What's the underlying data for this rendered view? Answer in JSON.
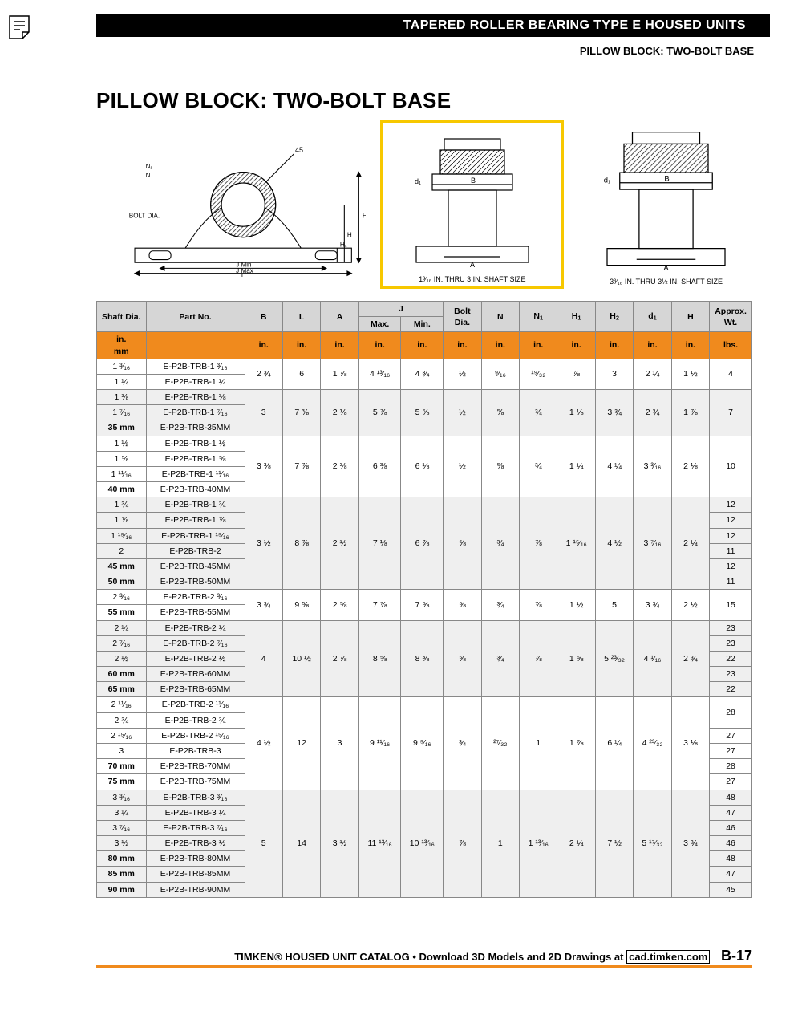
{
  "header": {
    "title_line": "TAPERED ROLLER BEARING TYPE E HOUSED UNITS",
    "subtitle_line": "PILLOW BLOCK: TWO-BOLT BASE"
  },
  "section_title": "PILLOW BLOCK: TWO-BOLT BASE",
  "diagram_captions": {
    "d2": "1³⁄₁₆ IN. THRU 3 IN. SHAFT SIZE",
    "d3": "3³⁄₁₆ IN. THRU 3½ IN. SHAFT SIZE"
  },
  "columns": {
    "shaft": "Shaft Dia.",
    "part": "Part No.",
    "B": "B",
    "L": "L",
    "A": "A",
    "J": "J",
    "Jmax": "Max.",
    "Jmin": "Min.",
    "bolt": "Bolt Dia.",
    "N": "N",
    "N1": "N",
    "N1_sub": "1",
    "H1": "H",
    "H1_sub": "1",
    "H2": "H",
    "H2_sub": "2",
    "d1": "d",
    "d1_sub": "1",
    "H": "H",
    "wt": "Approx. Wt."
  },
  "unit_row": {
    "shaft_in": "in.",
    "shaft_mm": "mm",
    "in": "in.",
    "lbs": "lbs."
  },
  "groups": [
    {
      "alt": false,
      "rows": [
        {
          "shaft": "1 ³⁄₁₆",
          "part": "E-P2B-TRB-1 ³⁄₁₆"
        },
        {
          "shaft": "1 ¼",
          "part": "E-P2B-TRB-1 ¼"
        }
      ],
      "dims": {
        "B": "2 ¾",
        "L": "6",
        "A": "1 ⅞",
        "Jmax": "4 ¹³⁄₁₆",
        "Jmin": "4 ¾",
        "bolt": "½",
        "N": "⁹⁄₁₆",
        "N1": "¹⁹⁄₃₂",
        "H1": "⅞",
        "H2": "3",
        "d1": "2 ¼",
        "H": "1 ½"
      },
      "wts": [
        "4"
      ]
    },
    {
      "alt": true,
      "rows": [
        {
          "shaft": "1 ⅜",
          "part": "E-P2B-TRB-1 ⅜"
        },
        {
          "shaft": "1 ⁷⁄₁₆",
          "part": "E-P2B-TRB-1 ⁷⁄₁₆"
        },
        {
          "shaft": "35 mm",
          "part": "E-P2B-TRB-35MM",
          "bold": true
        }
      ],
      "dims": {
        "B": "3",
        "L": "7 ⅜",
        "A": "2 ⅛",
        "Jmax": "5 ⅞",
        "Jmin": "5 ⅝",
        "bolt": "½",
        "N": "⅝",
        "N1": "¾",
        "H1": "1 ⅛",
        "H2": "3 ¾",
        "d1": "2 ¾",
        "H": "1 ⅞"
      },
      "wts": [
        "7"
      ]
    },
    {
      "alt": false,
      "rows": [
        {
          "shaft": "1 ½",
          "part": "E-P2B-TRB-1 ½"
        },
        {
          "shaft": "1 ⅝",
          "part": "E-P2B-TRB-1 ⅝"
        },
        {
          "shaft": "1 ¹¹⁄₁₆",
          "part": "E-P2B-TRB-1 ¹¹⁄₁₆"
        },
        {
          "shaft": "40 mm",
          "part": "E-P2B-TRB-40MM",
          "bold": true
        }
      ],
      "dims": {
        "B": "3 ⅜",
        "L": "7 ⅞",
        "A": "2 ⅜",
        "Jmax": "6 ⅜",
        "Jmin": "6 ⅛",
        "bolt": "½",
        "N": "⅝",
        "N1": "¾",
        "H1": "1 ¼",
        "H2": "4 ¼",
        "d1": "3 ³⁄₁₆",
        "H": "2 ⅛"
      },
      "wts": [
        "10"
      ]
    },
    {
      "alt": true,
      "rows": [
        {
          "shaft": "1 ¾",
          "part": "E-P2B-TRB-1 ¾"
        },
        {
          "shaft": "1 ⅞",
          "part": "E-P2B-TRB-1 ⅞"
        },
        {
          "shaft": "1 ¹⁵⁄₁₆",
          "part": "E-P2B-TRB-1 ¹⁵⁄₁₆"
        },
        {
          "shaft": "2",
          "part": "E-P2B-TRB-2"
        },
        {
          "shaft": "45 mm",
          "part": "E-P2B-TRB-45MM",
          "bold": true
        },
        {
          "shaft": "50 mm",
          "part": "E-P2B-TRB-50MM",
          "bold": true
        }
      ],
      "dims": {
        "B": "3 ½",
        "L": "8 ⅞",
        "A": "2 ½",
        "Jmax": "7 ⅛",
        "Jmin": "6 ⅞",
        "bolt": "⅝",
        "N": "¾",
        "N1": "⅞",
        "H1": "1 ¹⁵⁄₁₆",
        "H2": "4 ½",
        "d1": "3 ⁷⁄₁₆",
        "H": "2 ¼"
      },
      "wts": [
        "12",
        "12",
        "12",
        "11",
        "12",
        "11"
      ]
    },
    {
      "alt": false,
      "rows": [
        {
          "shaft": "2 ³⁄₁₆",
          "part": "E-P2B-TRB-2 ³⁄₁₆"
        },
        {
          "shaft": "55 mm",
          "part": "E-P2B-TRB-55MM",
          "bold": true
        }
      ],
      "dims": {
        "B": "3 ¾",
        "L": "9 ⅝",
        "A": "2 ⅝",
        "Jmax": "7 ⅞",
        "Jmin": "7 ⅝",
        "bolt": "⅝",
        "N": "¾",
        "N1": "⅞",
        "H1": "1 ½",
        "H2": "5",
        "d1": "3 ¾",
        "H": "2 ½"
      },
      "wts": [
        "15"
      ]
    },
    {
      "alt": true,
      "rows": [
        {
          "shaft": "2 ¼",
          "part": "E-P2B-TRB-2 ¼"
        },
        {
          "shaft": "2 ⁷⁄₁₆",
          "part": "E-P2B-TRB-2 ⁷⁄₁₆"
        },
        {
          "shaft": "2 ½",
          "part": "E-P2B-TRB-2 ½"
        },
        {
          "shaft": "60 mm",
          "part": "E-P2B-TRB-60MM",
          "bold": true
        },
        {
          "shaft": "65 mm",
          "part": "E-P2B-TRB-65MM",
          "bold": true
        }
      ],
      "dims": {
        "B": "4",
        "L": "10 ½",
        "A": "2 ⅞",
        "Jmax": "8 ⅝",
        "Jmin": "8 ⅜",
        "bolt": "⅝",
        "N": "¾",
        "N1": "⅞",
        "H1": "1 ⅝",
        "H2": "5 ²³⁄₃₂",
        "d1": "4 ¹⁄₁₆",
        "H": "2 ¾"
      },
      "wts": [
        "23",
        "23",
        "22",
        "23",
        "22"
      ]
    },
    {
      "alt": false,
      "rows": [
        {
          "shaft": "2 ¹¹⁄₁₆",
          "part": "E-P2B-TRB-2 ¹¹⁄₁₆"
        },
        {
          "shaft": "2 ¾",
          "part": "E-P2B-TRB-2 ¾"
        },
        {
          "shaft": "2 ¹⁵⁄₁₆",
          "part": "E-P2B-TRB-2 ¹⁵⁄₁₆"
        },
        {
          "shaft": "3",
          "part": "E-P2B-TRB-3"
        },
        {
          "shaft": "70 mm",
          "part": "E-P2B-TRB-70MM",
          "bold": true
        },
        {
          "shaft": "75 mm",
          "part": "E-P2B-TRB-75MM",
          "bold": true
        }
      ],
      "dims": {
        "B": "4 ½",
        "L": "12",
        "A": "3",
        "Jmax": "9 ¹¹⁄₁₆",
        "Jmin": "9 ⁵⁄₁₆",
        "bolt": "¾",
        "N": "²⁷⁄₃₂",
        "N1": "1",
        "H1": "1 ⅞",
        "H2": "6 ¼",
        "d1": "4 ²³⁄₃₂",
        "H": "3 ⅛"
      },
      "wts": [
        "28",
        "",
        "27",
        "27",
        "28",
        "27"
      ],
      "wts_span": [
        2,
        0,
        1,
        1,
        1,
        1
      ]
    },
    {
      "alt": true,
      "rows": [
        {
          "shaft": "3 ³⁄₁₆",
          "part": "E-P2B-TRB-3 ³⁄₁₆"
        },
        {
          "shaft": "3 ¼",
          "part": "E-P2B-TRB-3 ¼"
        },
        {
          "shaft": "3 ⁷⁄₁₆",
          "part": "E-P2B-TRB-3 ⁷⁄₁₆"
        },
        {
          "shaft": "3 ½",
          "part": "E-P2B-TRB-3 ½"
        },
        {
          "shaft": "80 mm",
          "part": "E-P2B-TRB-80MM",
          "bold": true
        },
        {
          "shaft": "85 mm",
          "part": "E-P2B-TRB-85MM",
          "bold": true
        },
        {
          "shaft": "90 mm",
          "part": "E-P2B-TRB-90MM",
          "bold": true
        }
      ],
      "dims": {
        "B": "5",
        "L": "14",
        "A": "3 ½",
        "Jmax": "11 ¹³⁄₁₆",
        "Jmin": "10 ¹³⁄₁₆",
        "bolt": "⅞",
        "N": "1",
        "N1": "1 ¹³⁄₁₆",
        "H1": "2 ¼",
        "H2": "7 ½",
        "d1": "5 ¹⁷⁄₃₂",
        "H": "3 ¾"
      },
      "wts": [
        "48",
        "47",
        "46",
        "46",
        "48",
        "47",
        "45"
      ]
    }
  ],
  "footer": {
    "text_before": "TIMKEN® HOUSED UNIT CATALOG • Download 3D Models and 2D Drawings at ",
    "link_text": "cad.timken.com",
    "page": "B-17"
  },
  "colors": {
    "accent_orange": "#f08a1d",
    "highlight_yellow": "#f7c800",
    "header_gray": "#d6d6d6",
    "alt_row": "#efefef",
    "black": "#000000"
  }
}
